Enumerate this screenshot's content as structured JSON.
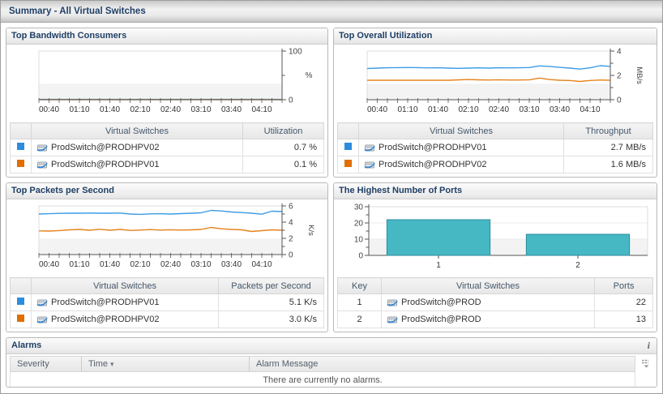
{
  "page": {
    "title": "Summary - All Virtual Switches"
  },
  "icons": {
    "info": "i",
    "sort_desc": "▾",
    "series_swatch": "square",
    "switch": "virtual-switch-icon",
    "chooser": "column-list-icon"
  },
  "colors": {
    "accent_navy": "#1f3f66",
    "series_blue": "#2b8dde",
    "series_orange": "#e06e00",
    "line_blue": "#3d9ce6",
    "line_orange": "#e5831d",
    "bar_teal": "#45b8c4",
    "bar_border": "#2e8a9a",
    "band_gray": "#f3f3f3"
  },
  "panels": [
    {
      "title": "Top Bandwidth Consumers",
      "table": {
        "col1": "",
        "col2": "Virtual Switches",
        "col3": "Utilization",
        "rows": [
          {
            "swatch": "#2b8dde",
            "name": "ProdSwitch@PRODHPV02",
            "value": "0.7 %"
          },
          {
            "swatch": "#e06e00",
            "name": "ProdSwitch@PRODHPV01",
            "value": "0.1 %"
          }
        ]
      }
    },
    {
      "title": "Top Overall Utilization",
      "table": {
        "col1": "",
        "col2": "Virtual Switches",
        "col3": "Throughput",
        "rows": [
          {
            "swatch": "#2b8dde",
            "name": "ProdSwitch@PRODHPV01",
            "value": "2.7 MB/s"
          },
          {
            "swatch": "#e06e00",
            "name": "ProdSwitch@PRODHPV02",
            "value": "1.6 MB/s"
          }
        ]
      }
    },
    {
      "title": "Top Packets per Second",
      "table": {
        "col1": "",
        "col2": "Virtual Switches",
        "col3": "Packets per Second",
        "rows": [
          {
            "swatch": "#2b8dde",
            "name": "ProdSwitch@PRODHPV01",
            "value": "5.1 K/s"
          },
          {
            "swatch": "#e06e00",
            "name": "ProdSwitch@PRODHPV02",
            "value": "3.0 K/s"
          }
        ]
      }
    },
    {
      "title": "The Highest Number of Ports",
      "table": {
        "col1": "Key",
        "col2": "Virtual Switches",
        "col3": "Ports",
        "rows": [
          {
            "key": "1",
            "name": "ProdSwitch@PROD",
            "value": "22"
          },
          {
            "key": "2",
            "name": "ProdSwitch@PROD",
            "value": "13"
          }
        ]
      }
    }
  ],
  "alarms": {
    "title": "Alarms",
    "headers": {
      "severity": "Severity",
      "time": "Time",
      "message": "Alarm Message"
    },
    "empty_message": "There are currently no alarms."
  },
  "chart_data": [
    {
      "type": "line",
      "title": "Top Bandwidth Consumers",
      "unit": "%",
      "unit_rotated": false,
      "ylim": [
        0,
        100
      ],
      "yticks": [
        {
          "v": 0,
          "label": "0"
        },
        {
          "v": 50,
          "label": ""
        },
        {
          "v": 100,
          "label": "100"
        }
      ],
      "x_tick_count": 25,
      "x_labels": [
        "00:40",
        "01:10",
        "01:40",
        "02:10",
        "02:40",
        "03:10",
        "03:40",
        "04:10"
      ],
      "grid": false,
      "legend": "table-below",
      "series": [
        {
          "name": "ProdSwitch@PRODHPV02",
          "color": "#3d9ce6",
          "values": [
            0.7,
            0.7,
            0.7,
            0.7,
            0.7,
            0.7,
            0.7,
            0.7,
            0.7,
            0.7,
            0.7,
            0.7,
            0.7,
            0.7,
            0.7,
            0.7,
            0.7,
            0.7,
            0.7,
            0.7,
            0.7,
            0.7,
            0.7,
            0.7,
            0.7
          ]
        },
        {
          "name": "ProdSwitch@PRODHPV01",
          "color": "#e5831d",
          "values": [
            0.1,
            0.1,
            0.1,
            0.1,
            0.1,
            0.1,
            0.1,
            0.1,
            0.1,
            0.1,
            0.1,
            0.1,
            0.1,
            0.1,
            0.1,
            0.1,
            0.1,
            0.1,
            0.1,
            0.1,
            0.1,
            0.1,
            0.1,
            0.1,
            0.1
          ]
        }
      ]
    },
    {
      "type": "line",
      "title": "Top Overall Utilization",
      "unit": "MB/s",
      "unit_rotated": true,
      "ylim": [
        0,
        4
      ],
      "yticks": [
        {
          "v": 0,
          "label": "0"
        },
        {
          "v": 1,
          "label": ""
        },
        {
          "v": 2,
          "label": "2"
        },
        {
          "v": 3,
          "label": ""
        },
        {
          "v": 4,
          "label": "4"
        }
      ],
      "x_tick_count": 25,
      "x_labels": [
        "00:40",
        "01:10",
        "01:40",
        "02:10",
        "02:40",
        "03:10",
        "03:40",
        "04:10"
      ],
      "grid": false,
      "legend": "table-below",
      "series": [
        {
          "name": "ProdSwitch@PRODHPV01",
          "color": "#3d9ce6",
          "values": [
            2.56,
            2.6,
            2.63,
            2.64,
            2.65,
            2.64,
            2.62,
            2.63,
            2.6,
            2.58,
            2.6,
            2.62,
            2.6,
            2.63,
            2.62,
            2.63,
            2.65,
            2.78,
            2.74,
            2.66,
            2.6,
            2.52,
            2.62,
            2.8,
            2.74
          ]
        },
        {
          "name": "ProdSwitch@PRODHPV02",
          "color": "#e5831d",
          "values": [
            1.6,
            1.6,
            1.6,
            1.6,
            1.6,
            1.6,
            1.6,
            1.6,
            1.6,
            1.63,
            1.66,
            1.63,
            1.62,
            1.64,
            1.62,
            1.62,
            1.64,
            1.78,
            1.66,
            1.6,
            1.58,
            1.5,
            1.58,
            1.62,
            1.6
          ]
        }
      ]
    },
    {
      "type": "line",
      "title": "Top Packets per Second",
      "unit": "K/s",
      "unit_rotated": true,
      "ylim": [
        0,
        6
      ],
      "yticks": [
        {
          "v": 0,
          "label": "0"
        },
        {
          "v": 1,
          "label": ""
        },
        {
          "v": 2,
          "label": "2"
        },
        {
          "v": 3,
          "label": ""
        },
        {
          "v": 4,
          "label": "4"
        },
        {
          "v": 5,
          "label": ""
        },
        {
          "v": 6,
          "label": "6"
        }
      ],
      "x_tick_count": 25,
      "x_labels": [
        "00:40",
        "01:10",
        "01:40",
        "02:10",
        "02:40",
        "03:10",
        "03:40",
        "04:10"
      ],
      "grid": false,
      "legend": "table-below",
      "series": [
        {
          "name": "ProdSwitch@PRODHPV01",
          "color": "#3d9ce6",
          "values": [
            5.0,
            5.04,
            5.08,
            5.1,
            5.1,
            5.12,
            5.1,
            5.1,
            5.12,
            5.0,
            4.96,
            5.02,
            5.04,
            5.0,
            5.05,
            5.1,
            5.15,
            5.45,
            5.38,
            5.25,
            5.18,
            5.1,
            4.98,
            5.35,
            5.3
          ]
        },
        {
          "name": "ProdSwitch@PRODHPV02",
          "color": "#e5831d",
          "values": [
            2.92,
            2.9,
            2.96,
            3.05,
            3.1,
            3.0,
            3.12,
            3.0,
            3.1,
            2.98,
            3.02,
            3.08,
            3.02,
            3.06,
            3.02,
            3.05,
            3.1,
            3.35,
            3.18,
            3.1,
            3.05,
            2.85,
            2.95,
            3.05,
            3.0
          ]
        }
      ]
    },
    {
      "type": "bar",
      "title": "The Highest Number of Ports",
      "categories": [
        "1",
        "2"
      ],
      "values": [
        22,
        13
      ],
      "ylim": [
        0,
        30
      ],
      "yticks": [
        {
          "v": 0,
          "label": "0"
        },
        {
          "v": 5,
          "label": ""
        },
        {
          "v": 10,
          "label": "10"
        },
        {
          "v": 15,
          "label": ""
        },
        {
          "v": 20,
          "label": "20"
        },
        {
          "v": 25,
          "label": ""
        },
        {
          "v": 30,
          "label": "30"
        }
      ],
      "bar_color": "#45b8c4",
      "bar_border": "#2e8a9a",
      "grid": true,
      "legend": "table-below",
      "xlabel": "",
      "ylabel": ""
    }
  ]
}
